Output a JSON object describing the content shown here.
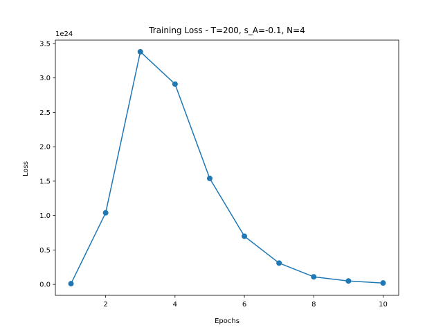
{
  "chart_data": {
    "type": "line",
    "title": "Training Loss - T=200, s_A=-0.1, N=4",
    "xlabel": "Epochs",
    "ylabel": "Loss",
    "offset_label": "1e24",
    "x": [
      1,
      2,
      3,
      4,
      5,
      6,
      7,
      8,
      9,
      10
    ],
    "series": [
      {
        "values": [
          0.01,
          1.04,
          3.38,
          2.91,
          1.54,
          0.7,
          0.31,
          0.11,
          0.05,
          0.02
        ],
        "color": "#1f77b4"
      }
    ],
    "x_ticks": [
      2,
      4,
      6,
      8,
      10
    ],
    "x_tick_labels": [
      "2",
      "4",
      "6",
      "8",
      "10"
    ],
    "y_ticks": [
      0.0,
      0.5,
      1.0,
      1.5,
      2.0,
      2.5,
      3.0,
      3.5
    ],
    "y_tick_labels": [
      "0.0",
      "0.5",
      "1.0",
      "1.5",
      "2.0",
      "2.5",
      "3.0",
      "3.5"
    ],
    "xlim": [
      0.55,
      10.45
    ],
    "ylim": [
      -0.159,
      3.549
    ],
    "grid": false,
    "marker": "circle"
  }
}
